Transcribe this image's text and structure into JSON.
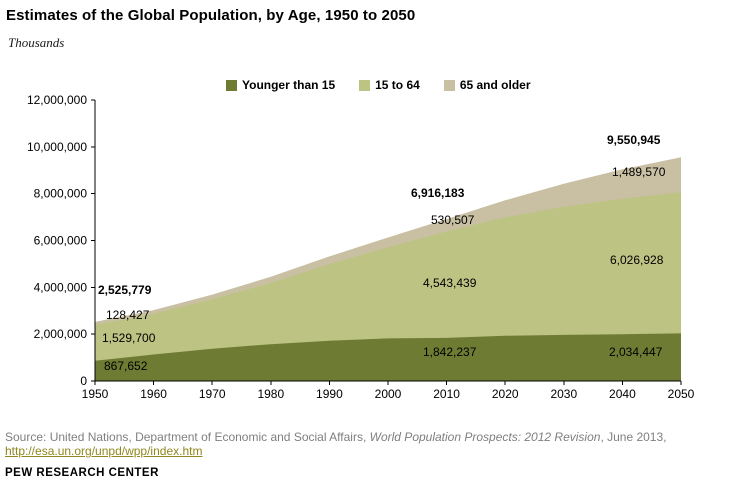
{
  "header": {
    "title": "Estimates of the Global Population, by Age, 1950 to 2050",
    "units_label": "Thousands"
  },
  "legend": [
    {
      "label": "Younger than 15",
      "color": "#6e7b33"
    },
    {
      "label": "15 to 64",
      "color": "#bdc383"
    },
    {
      "label": "65 and older",
      "color": "#c9c0a4"
    }
  ],
  "chart_data": {
    "type": "area",
    "stacked": true,
    "title": "Estimates of the Global Population, by Age, 1950 to 2050",
    "units": "Thousands",
    "x": [
      1950,
      1960,
      1970,
      1980,
      1990,
      2000,
      2010,
      2020,
      2030,
      2040,
      2050
    ],
    "series": [
      {
        "name": "Younger than 15",
        "color": "#6e7b33",
        "values": [
          867652,
          1130000,
          1380000,
          1570000,
          1720000,
          1820000,
          1842237,
          1930000,
          1970000,
          2000000,
          2034447
        ]
      },
      {
        "name": "15 to 64",
        "color": "#bdc383",
        "values": [
          1529700,
          1736000,
          2111000,
          2619000,
          3271000,
          3888000,
          4543439,
          5067000,
          5465000,
          5789000,
          6026928
        ]
      },
      {
        "name": "65 and older",
        "color": "#c9c0a4",
        "values": [
          128427,
          160000,
          200000,
          260000,
          330000,
          420000,
          530507,
          720000,
          990000,
          1250000,
          1489570
        ]
      }
    ],
    "totals_labeled": {
      "1950": 2525779,
      "2010": 6916183,
      "2050": 9550945
    },
    "ylim": [
      0,
      12000000
    ],
    "ytick_labels": [
      "0",
      "2,000,000",
      "4,000,000",
      "6,000,000",
      "8,000,000",
      "10,000,000",
      "12,000,000"
    ],
    "xtick_labels": [
      "1950",
      "1960",
      "1970",
      "1980",
      "1990",
      "2000",
      "2010",
      "2020",
      "2030",
      "2040",
      "2050"
    ],
    "legend_position": "top",
    "grid": false,
    "axis_color": "#000000"
  },
  "annotations": {
    "y1950": {
      "total": "2,525,779",
      "older": "128,427",
      "working": "1,529,700",
      "young": "867,652"
    },
    "y2010": {
      "total": "6,916,183",
      "older": "530,507",
      "working": "4,543,439",
      "young": "1,842,237"
    },
    "y2050": {
      "total": "9,550,945",
      "older": "1,489,570",
      "working": "6,026,928",
      "young": "2,034,447"
    }
  },
  "footer": {
    "source_prefix": "Source: United Nations, Department of Economic and Social Affairs, ",
    "source_italic": "World Population Prospects: 2012 Revision",
    "source_suffix": ", June 2013,",
    "source_link": "http://esa.un.org/unpd/wpp/index.htm",
    "link_color": "#8f861d",
    "brand": "PEW RESEARCH CENTER"
  }
}
